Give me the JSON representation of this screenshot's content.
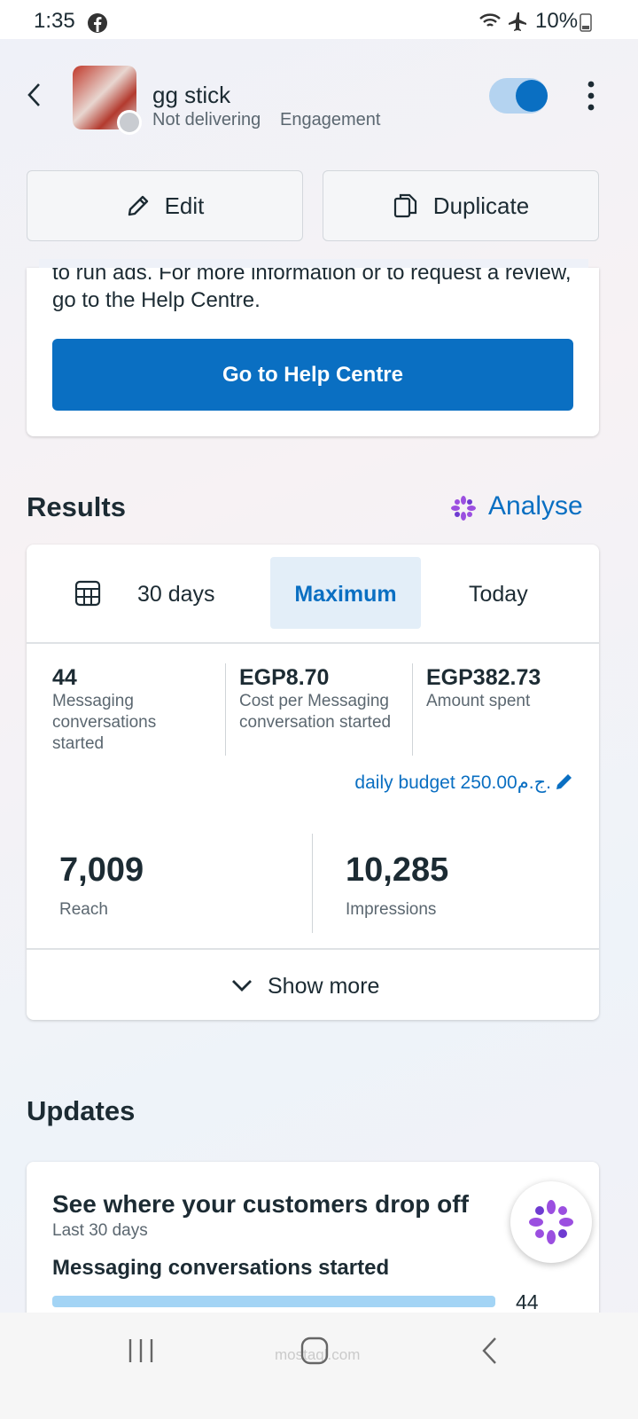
{
  "status_bar": {
    "time": "1:35",
    "battery": "10%"
  },
  "header": {
    "title": "gg stick",
    "status": "Not delivering",
    "objective": "Engagement"
  },
  "actions": {
    "edit": "Edit",
    "duplicate": "Duplicate"
  },
  "notice": {
    "text": "to run ads. For more information or to request a review, go to the Help Centre.",
    "button": "Go to Help Centre"
  },
  "results": {
    "title": "Results",
    "analyse": "Analyse",
    "tabs": [
      "30 days",
      "Maximum",
      "Today"
    ],
    "metrics": [
      {
        "value": "44",
        "label": "Messaging conversations started"
      },
      {
        "value": "EGP8.70",
        "label": "Cost per Messaging conversation started"
      },
      {
        "value": "EGP382.73",
        "label": "Amount spent"
      }
    ],
    "budget": "daily budget 250.00ج.م.",
    "reach": {
      "value": "7,009",
      "label": "Reach"
    },
    "impressions": {
      "value": "10,285",
      "label": "Impressions"
    },
    "show_more": "Show more"
  },
  "updates": {
    "title": "Updates",
    "card_title": "See where your customers drop off",
    "period": "Last 30 days",
    "metric": "Messaging conversations started",
    "metric_value": "44"
  },
  "watermark": "mostaql.com"
}
